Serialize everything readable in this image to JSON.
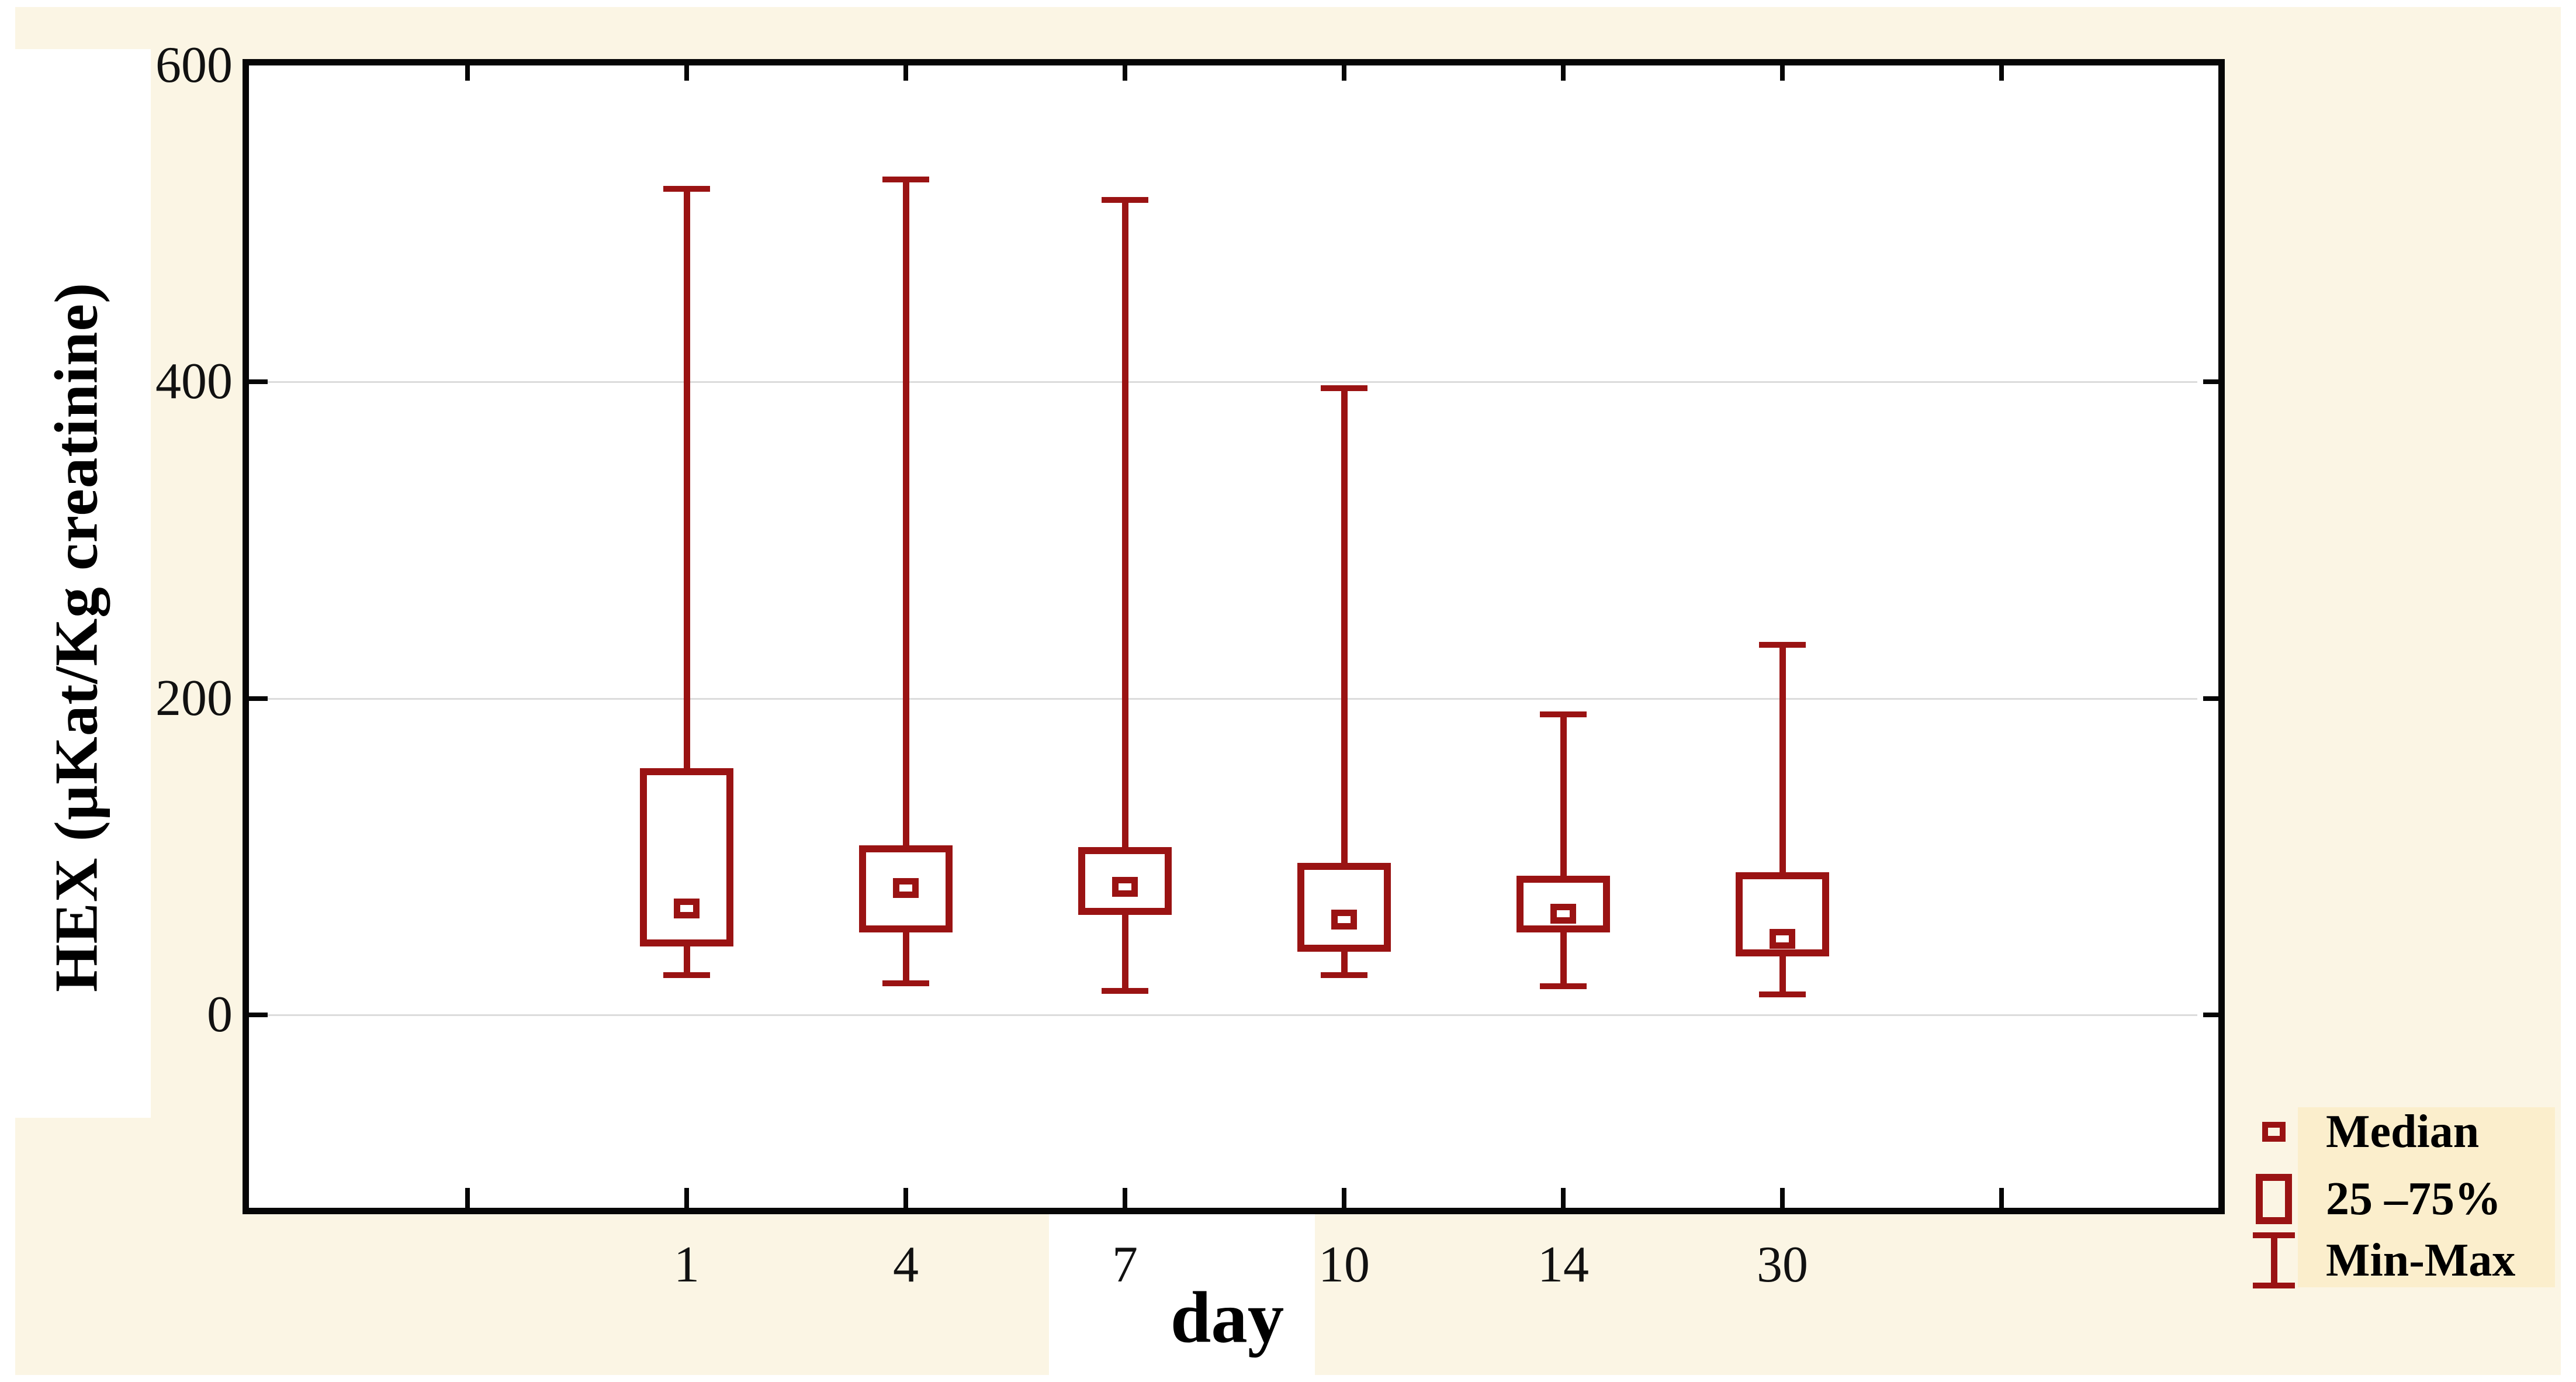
{
  "figure": {
    "background_color": "#FBF5E4",
    "plot_background": "#FFFFFF",
    "frame_color": "#060606",
    "grid_color": "#DCDCDC",
    "series_color": "#9A1313",
    "legend_background": "#FBEECC"
  },
  "chart_data": {
    "type": "box",
    "title": "",
    "xlabel": "day",
    "ylabel": "HEX (µKat/Kg creatinine)",
    "categories": [
      "1",
      "4",
      "7",
      "10",
      "14",
      "30"
    ],
    "boxes": [
      {
        "category": "1",
        "min": 25,
        "q1": 43,
        "median": 67,
        "q3": 156,
        "max": 522
      },
      {
        "category": "4",
        "min": 20,
        "q1": 52,
        "median": 80,
        "q3": 107,
        "max": 528
      },
      {
        "category": "7",
        "min": 15,
        "q1": 63,
        "median": 81,
        "q3": 106,
        "max": 515
      },
      {
        "category": "10",
        "min": 25,
        "q1": 40,
        "median": 60,
        "q3": 96,
        "max": 396
      },
      {
        "category": "14",
        "min": 18,
        "q1": 52,
        "median": 64,
        "q3": 88,
        "max": 190
      },
      {
        "category": "30",
        "min": 13,
        "q1": 37,
        "median": 48,
        "q3": 90,
        "max": 234
      }
    ],
    "ylim": [
      -122,
      600
    ],
    "yticks": [
      0,
      200,
      400,
      600
    ],
    "grid": "horizontal-only",
    "legend": {
      "position": "bottom-right-outside",
      "entries": [
        {
          "icon": "median-marker-icon",
          "label": "Median"
        },
        {
          "icon": "iqr-box-icon",
          "label": "25 –75%"
        },
        {
          "icon": "minmax-whisker-icon",
          "label": "Min-Max"
        }
      ]
    }
  }
}
